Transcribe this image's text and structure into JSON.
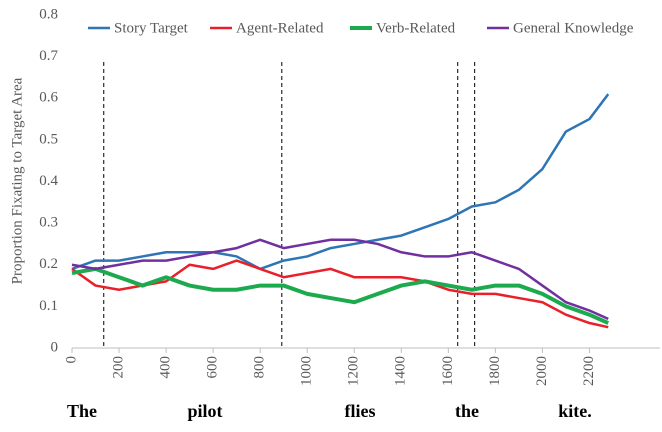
{
  "chart_data": {
    "type": "line",
    "y_label": "Proportion Fixating to Target Area",
    "x": [
      0,
      100,
      200,
      300,
      400,
      500,
      600,
      700,
      800,
      900,
      1000,
      1100,
      1200,
      1300,
      1400,
      1500,
      1600,
      1700,
      1800,
      1900,
      2000,
      2100,
      2200,
      2280
    ],
    "series": [
      {
        "name": "Story Target",
        "color": "#2e75b6",
        "values": [
          0.19,
          0.21,
          0.21,
          0.22,
          0.23,
          0.23,
          0.23,
          0.22,
          0.19,
          0.21,
          0.22,
          0.24,
          0.25,
          0.26,
          0.27,
          0.29,
          0.31,
          0.34,
          0.35,
          0.38,
          0.43,
          0.52,
          0.55,
          0.61
        ]
      },
      {
        "name": "Agent-Related",
        "color": "#e8202a",
        "values": [
          0.19,
          0.15,
          0.14,
          0.15,
          0.16,
          0.2,
          0.19,
          0.21,
          0.19,
          0.17,
          0.18,
          0.19,
          0.17,
          0.17,
          0.17,
          0.16,
          0.14,
          0.13,
          0.13,
          0.12,
          0.11,
          0.08,
          0.06,
          0.05
        ]
      },
      {
        "name": "Verb-Related",
        "color": "#1daa4f",
        "values": [
          0.18,
          0.19,
          0.17,
          0.15,
          0.17,
          0.15,
          0.14,
          0.14,
          0.15,
          0.15,
          0.13,
          0.12,
          0.11,
          0.13,
          0.15,
          0.16,
          0.15,
          0.14,
          0.15,
          0.15,
          0.13,
          0.1,
          0.08,
          0.06
        ]
      },
      {
        "name": "General Knowledge",
        "color": "#7030a0",
        "values": [
          0.2,
          0.19,
          0.2,
          0.21,
          0.21,
          0.22,
          0.23,
          0.24,
          0.26,
          0.24,
          0.25,
          0.26,
          0.26,
          0.25,
          0.23,
          0.22,
          0.22,
          0.23,
          0.21,
          0.19,
          0.15,
          0.11,
          0.09,
          0.07
        ]
      }
    ],
    "xlim": [
      0,
      2500
    ],
    "xticks": [
      0,
      200,
      400,
      600,
      800,
      1000,
      1200,
      1400,
      1600,
      1800,
      2000,
      2200
    ],
    "ylim": [
      0,
      0.8
    ],
    "yticks": [
      0,
      0.1,
      0.2,
      0.3,
      0.4,
      0.5,
      0.6,
      0.7,
      0.8
    ],
    "onsets": [
      135,
      892,
      1640,
      1712
    ],
    "words": [
      "The",
      "pilot",
      "flies",
      "the",
      "kite."
    ]
  }
}
